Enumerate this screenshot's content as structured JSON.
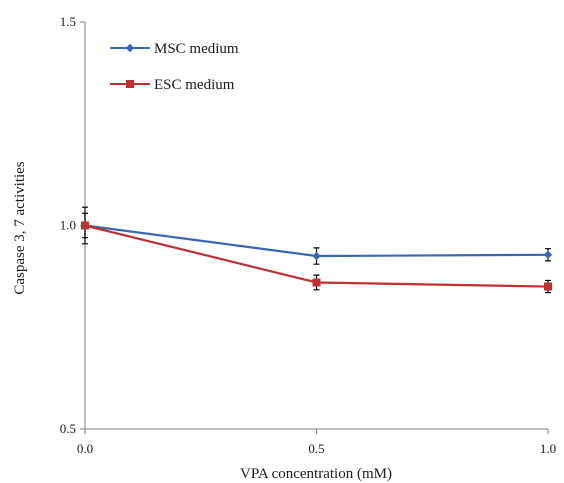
{
  "chart_data": {
    "type": "line",
    "title": "",
    "xlabel": "VPA concentration (mM)",
    "ylabel": "Caspase 3, 7 activities",
    "x": [
      0.0,
      0.5,
      1.0
    ],
    "x_tick_labels": [
      "0.0",
      "0.5",
      "1.0"
    ],
    "y_tick_labels": [
      "0.5",
      "1.0",
      "1.5"
    ],
    "y_ticks": [
      0.5,
      1.0,
      1.5
    ],
    "xlim": [
      0.0,
      1.0
    ],
    "ylim": [
      0.5,
      1.5
    ],
    "grid": false,
    "legend_position": "top-left",
    "series": [
      {
        "name": "MSC medium",
        "color": "#3a66b7",
        "marker": "diamond",
        "values": [
          1.0,
          0.925,
          0.928
        ],
        "errors": [
          0.045,
          0.02,
          0.015
        ]
      },
      {
        "name": "ESC medium",
        "color": "#c03030",
        "marker": "square",
        "values": [
          1.0,
          0.86,
          0.85
        ],
        "errors": [
          0.03,
          0.018,
          0.015
        ]
      }
    ]
  }
}
